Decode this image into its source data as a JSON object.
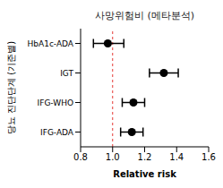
{
  "chart_data": {
    "type": "scatter",
    "title": "사망위험비 (메타분석)",
    "x_label": "Relative risk",
    "y_label": "당뇨 진단단계 (기준별)",
    "orientation": "horizontal",
    "categories": [
      "HbA1c-ADA",
      "IGT",
      "IFG-WHO",
      "IFG-ADA"
    ],
    "values": [
      0.97,
      1.32,
      1.13,
      1.12
    ],
    "ci_low": [
      0.88,
      1.23,
      1.06,
      1.05
    ],
    "ci_high": [
      1.07,
      1.41,
      1.2,
      1.19
    ],
    "reference_line": 1,
    "color": "#000000",
    "marker": "circle",
    "xlim": [
      0.8,
      1.6
    ],
    "xticks": [
      0.8,
      {
        "value": 1,
        "label": "1.0"
      },
      1.2,
      1.4,
      1.6
    ]
  }
}
